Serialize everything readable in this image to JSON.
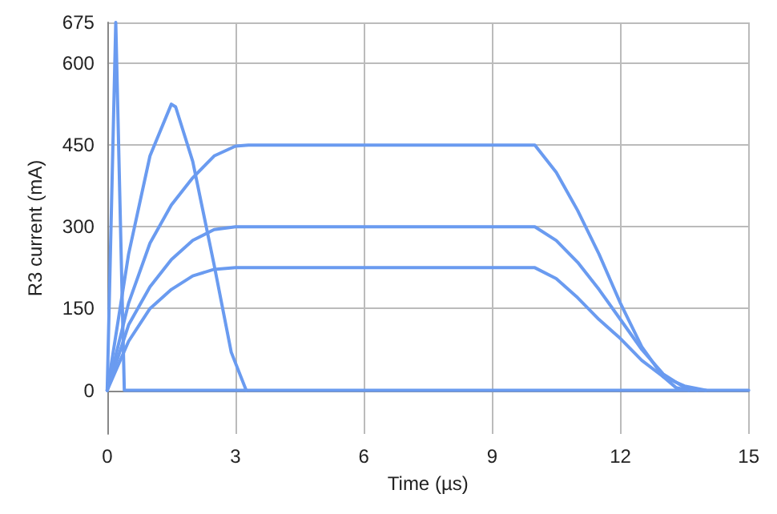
{
  "chart_data": {
    "type": "line",
    "xlabel": "Time (µs)",
    "ylabel": "R3 current (mA)",
    "xlim": [
      0,
      15
    ],
    "xticks": [
      0,
      3,
      6,
      9,
      12,
      15
    ],
    "ylim": [
      -80,
      675
    ],
    "yticks": [
      0,
      150,
      300,
      450,
      600,
      675
    ],
    "grid": true,
    "marker": "none",
    "line_style": "solid",
    "series": [
      {
        "color": "#6a9bf0",
        "x": [
          0,
          0.2,
          0.4,
          15
        ],
        "values": [
          0,
          675,
          0,
          0
        ]
      },
      {
        "color": "#6a9bf0",
        "x": [
          0,
          0.5,
          1,
          1.5,
          1.6,
          2,
          2.5,
          2.9,
          3.25
        ],
        "values": [
          0,
          250,
          430,
          525,
          520,
          420,
          230,
          70,
          0
        ]
      },
      {
        "color": "#6a9bf0",
        "x": [
          0,
          0.5,
          1,
          1.5,
          2,
          2.5,
          3,
          3.3,
          10,
          10.5,
          11,
          11.5,
          12,
          12.5,
          13,
          13.3,
          13.6
        ],
        "values": [
          0,
          160,
          270,
          340,
          390,
          430,
          448,
          450,
          450,
          400,
          330,
          250,
          160,
          80,
          25,
          5,
          0
        ]
      },
      {
        "color": "#6a9bf0",
        "x": [
          0,
          0.5,
          1,
          1.5,
          2,
          2.5,
          3,
          10,
          10.5,
          11,
          11.5,
          12,
          12.5,
          13,
          13.5,
          13.8
        ],
        "values": [
          0,
          120,
          190,
          240,
          275,
          295,
          300,
          300,
          275,
          235,
          185,
          130,
          75,
          30,
          5,
          0
        ]
      },
      {
        "color": "#6a9bf0",
        "x": [
          0,
          0.5,
          1,
          1.5,
          2,
          2.5,
          3,
          10,
          10.5,
          11,
          11.5,
          12,
          12.5,
          13,
          13.5,
          14
        ],
        "values": [
          0,
          90,
          150,
          185,
          210,
          222,
          225,
          225,
          205,
          170,
          130,
          95,
          55,
          25,
          8,
          0
        ]
      }
    ]
  }
}
